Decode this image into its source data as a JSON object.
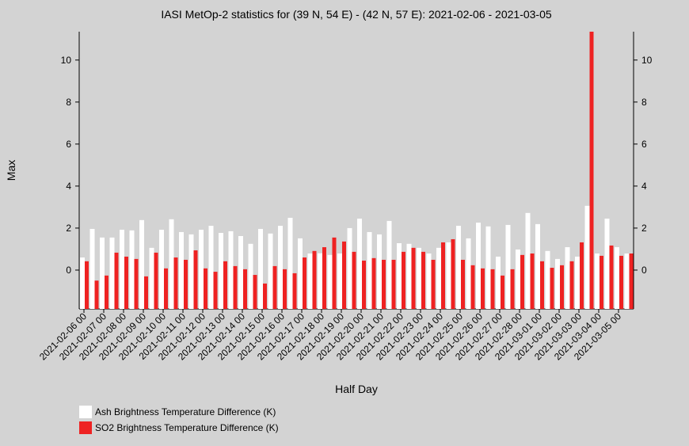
{
  "chart_data": {
    "type": "bar",
    "title": "IASI MetOp-2 statistics for (39 N, 54 E) - (42 N, 57 E): 2021-02-06 - 2021-03-05",
    "x_label": "Half Day",
    "y_label": "Max",
    "categories": [
      "2021-02-06 00",
      null,
      "2021-02-07 00",
      null,
      "2021-02-08 00",
      null,
      "2021-02-09 00",
      null,
      "2021-02-10 00",
      null,
      "2021-02-11 00",
      null,
      "2021-02-12 00",
      null,
      "2021-02-13 00",
      null,
      "2021-02-14 00",
      null,
      "2021-02-15 00",
      null,
      "2021-02-16 00",
      null,
      "2021-02-17 00",
      null,
      "2021-02-18 00",
      null,
      "2021-02-19 00",
      null,
      "2021-02-20 00",
      null,
      "2021-02-21 00",
      null,
      "2021-02-22 00",
      null,
      "2021-02-23 00",
      null,
      "2021-02-24 00",
      null,
      "2021-02-25 00",
      null,
      "2021-02-26 00",
      null,
      "2021-02-27 00",
      null,
      "2021-02-28 00",
      null,
      "2021-03-01 00",
      null,
      "2021-03-02 00",
      null,
      "2021-03-03 00",
      null,
      "2021-03-04 00",
      null,
      "2021-03-05 00",
      null
    ],
    "series": [
      {
        "name": "Ash Brightness Temperature Difference (K)",
        "color": "#ffffff",
        "values": [
          0.6,
          1.96,
          1.55,
          1.55,
          1.92,
          1.89,
          2.38,
          1.06,
          1.92,
          2.42,
          1.81,
          1.7,
          1.92,
          2.11,
          1.77,
          1.85,
          1.62,
          1.25,
          1.96,
          1.74,
          2.11,
          2.49,
          1.51,
          0.79,
          0.8,
          0.72,
          0.79,
          2.0,
          2.45,
          1.81,
          1.7,
          2.34,
          1.28,
          1.25,
          1.06,
          0.79,
          1.06,
          1.32,
          2.11,
          1.51,
          2.26,
          2.08,
          0.64,
          2.15,
          0.98,
          2.72,
          2.19,
          0.91,
          0.53,
          1.09,
          0.64,
          3.06,
          0.79,
          2.45,
          1.09,
          0.79
        ]
      },
      {
        "name": "SO2 Brightness Temperature Difference (K)",
        "color": "#ee2222",
        "values": [
          0.42,
          -0.5,
          -0.26,
          0.83,
          0.64,
          0.53,
          -0.3,
          0.83,
          0.08,
          0.6,
          0.49,
          0.94,
          0.08,
          -0.08,
          0.42,
          0.19,
          0.04,
          -0.23,
          -0.64,
          0.19,
          0.04,
          -0.15,
          0.6,
          0.91,
          1.09,
          1.55,
          1.36,
          0.87,
          0.45,
          0.57,
          0.49,
          0.49,
          0.87,
          1.06,
          0.87,
          0.49,
          1.32,
          1.47,
          0.49,
          0.23,
          0.08,
          0.04,
          -0.26,
          0.04,
          0.72,
          0.79,
          0.42,
          0.11,
          0.23,
          0.42,
          1.32,
          11.8,
          0.68,
          1.17,
          0.68,
          0.79
        ]
      }
    ],
    "ylim": [
      -1.85,
      11.35
    ],
    "yticks": [
      0,
      2,
      4,
      6,
      8,
      10
    ]
  }
}
